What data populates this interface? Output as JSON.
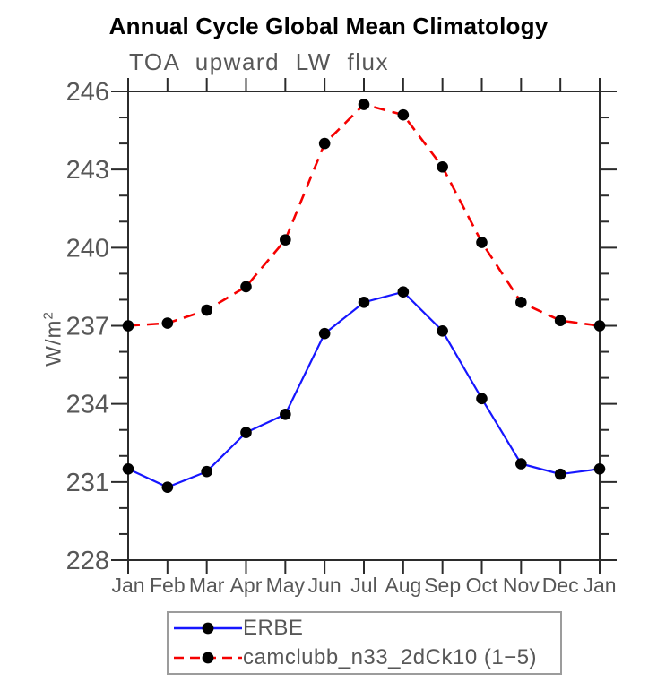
{
  "chart_data": {
    "type": "line",
    "title": "Annual Cycle Global Mean Climatology",
    "subtitle": "TOA upward LW flux",
    "ylabel": "W/m²",
    "ylabel_main": "W/m",
    "ylabel_sup": "2",
    "xlabel": "",
    "ylim": [
      228,
      246
    ],
    "yticks": [
      228,
      231,
      234,
      237,
      240,
      243,
      246
    ],
    "y_minor_step": 1,
    "grid": false,
    "legend_position": "bottom-center",
    "categories": [
      "Jan",
      "Feb",
      "Mar",
      "Apr",
      "May",
      "Jun",
      "Jul",
      "Aug",
      "Sep",
      "Oct",
      "Nov",
      "Dec",
      "Jan"
    ],
    "series": [
      {
        "name": "ERBE",
        "color": "#1616ff",
        "line_style": "solid",
        "marker": "filled-circle",
        "marker_color": "#000000",
        "values": [
          231.5,
          230.8,
          231.4,
          232.9,
          233.6,
          236.7,
          237.9,
          238.3,
          236.8,
          234.2,
          231.7,
          231.3,
          231.5
        ]
      },
      {
        "name": "camclubb_n33_2dCk10 (1−5)",
        "color": "#f50000",
        "line_style": "dashed",
        "marker": "filled-circle",
        "marker_color": "#000000",
        "values": [
          237.0,
          237.1,
          237.6,
          238.5,
          240.3,
          244.0,
          245.5,
          245.1,
          243.1,
          240.2,
          237.9,
          237.2,
          237.0
        ]
      }
    ]
  },
  "colors": {
    "axis": "#2b2b2b",
    "tick_label": "#575757",
    "title": "#000000",
    "legend_border": "#9c9c9c",
    "background": "#ffffff"
  }
}
